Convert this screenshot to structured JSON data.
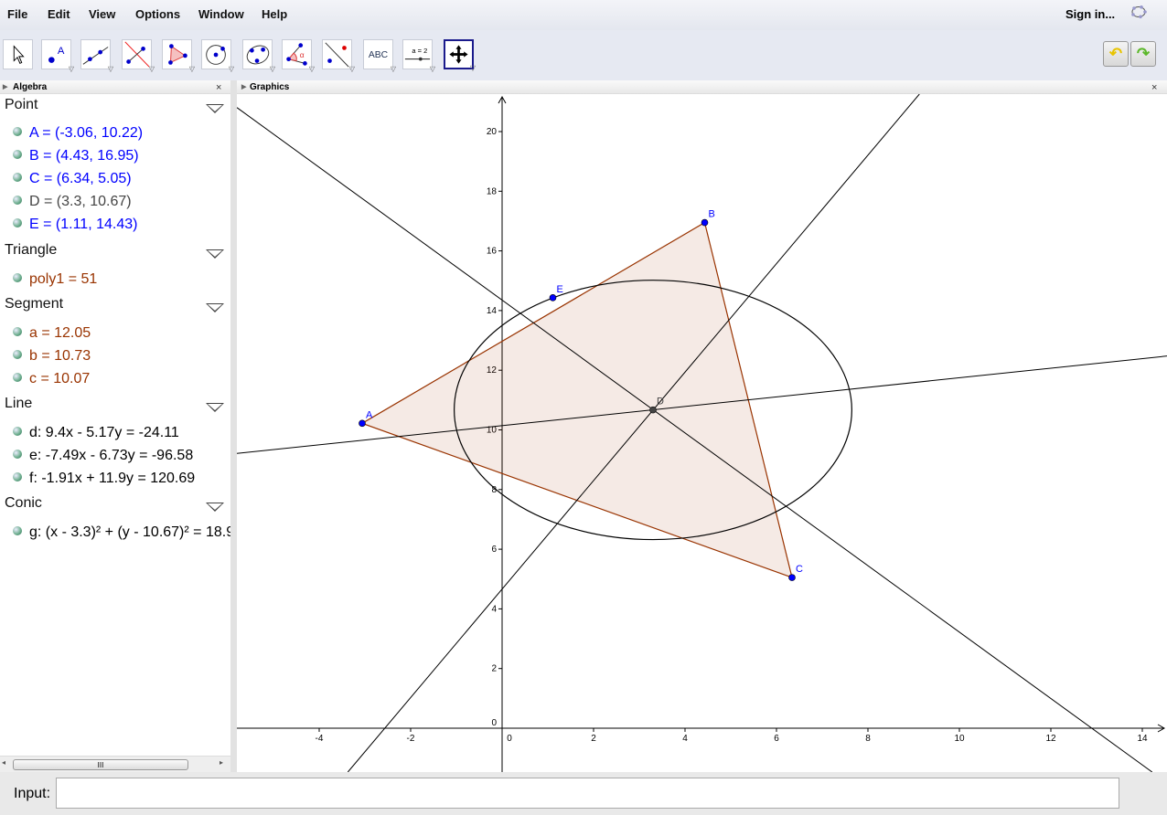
{
  "menu": [
    "File",
    "Edit",
    "View",
    "Options",
    "Window",
    "Help"
  ],
  "signin": "Sign in...",
  "toolbar": {
    "tools": [
      "move",
      "point",
      "line",
      "perpendicular-line",
      "polygon",
      "circle-center-point",
      "conic-five-points",
      "angle",
      "reflect",
      "text",
      "slider",
      "move-graphics-view"
    ],
    "text_tool_label": "ABC",
    "slider_tool_label": "a = 2",
    "selected": "move-graphics-view"
  },
  "panels": {
    "algebra": "Algebra",
    "graphics": "Graphics"
  },
  "algebra": [
    {
      "category": "Point",
      "items": [
        {
          "text": "A = (-3.06, 10.22)",
          "color": "#0000ff"
        },
        {
          "text": "B = (4.43, 16.95)",
          "color": "#0000ff"
        },
        {
          "text": "C = (6.34, 5.05)",
          "color": "#0000ff"
        },
        {
          "text": "D = (3.3, 10.67)",
          "color": "#444444"
        },
        {
          "text": "E = (1.11, 14.43)",
          "color": "#0000ff"
        }
      ]
    },
    {
      "category": "Triangle",
      "items": [
        {
          "text": "poly1 = 51",
          "color": "#993300"
        }
      ]
    },
    {
      "category": "Segment",
      "items": [
        {
          "text": "a = 12.05",
          "color": "#993300"
        },
        {
          "text": "b = 10.73",
          "color": "#993300"
        },
        {
          "text": "c = 10.07",
          "color": "#993300"
        }
      ]
    },
    {
      "category": "Line",
      "items": [
        {
          "text": "d: 9.4x - 5.17y = -24.11",
          "color": "#000000"
        },
        {
          "text": "e: -7.49x - 6.73y = -96.58",
          "color": "#000000"
        },
        {
          "text": "f: -1.91x + 11.9y = 120.69",
          "color": "#000000"
        }
      ]
    },
    {
      "category": "Conic",
      "items": [
        {
          "text": "g: (x - 3.3)² + (y - 10.67)² = 18.9",
          "color": "#000000"
        }
      ]
    }
  ],
  "scroll_thumb": "III",
  "geometry": {
    "points": [
      {
        "label": "A",
        "x": -3.06,
        "y": 10.22,
        "color": "#0000ff"
      },
      {
        "label": "B",
        "x": 4.43,
        "y": 16.95,
        "color": "#0000ff"
      },
      {
        "label": "C",
        "x": 6.34,
        "y": 5.05,
        "color": "#0000ff"
      },
      {
        "label": "D",
        "x": 3.3,
        "y": 10.67,
        "color": "#444444"
      },
      {
        "label": "E",
        "x": 1.11,
        "y": 14.43,
        "color": "#0000ff"
      }
    ],
    "polygon": {
      "vertices": [
        "A",
        "B",
        "C"
      ],
      "stroke": "#993300",
      "fill": "#993300",
      "fill_opacity": 0.1
    },
    "lines": [
      {
        "name": "d",
        "a": 9.4,
        "b": -5.17,
        "c": -24.11
      },
      {
        "name": "e",
        "a": -7.49,
        "b": -6.73,
        "c": -96.58
      },
      {
        "name": "f",
        "a": -1.91,
        "b": 11.9,
        "c": 120.69
      }
    ],
    "circle": {
      "name": "g",
      "cx": 3.3,
      "cy": 10.67,
      "r2": 18.9
    },
    "x_ticks": [
      -4,
      -2,
      0,
      2,
      4,
      6,
      8,
      10,
      12,
      14
    ],
    "y_ticks": [
      0,
      2,
      4,
      6,
      8,
      10,
      12,
      14,
      16,
      18,
      20
    ],
    "xlim": [
      -5.8,
      14.54
    ],
    "ylim": [
      -1.4,
      21.3
    ]
  },
  "input": {
    "label": "Input:",
    "value": ""
  }
}
